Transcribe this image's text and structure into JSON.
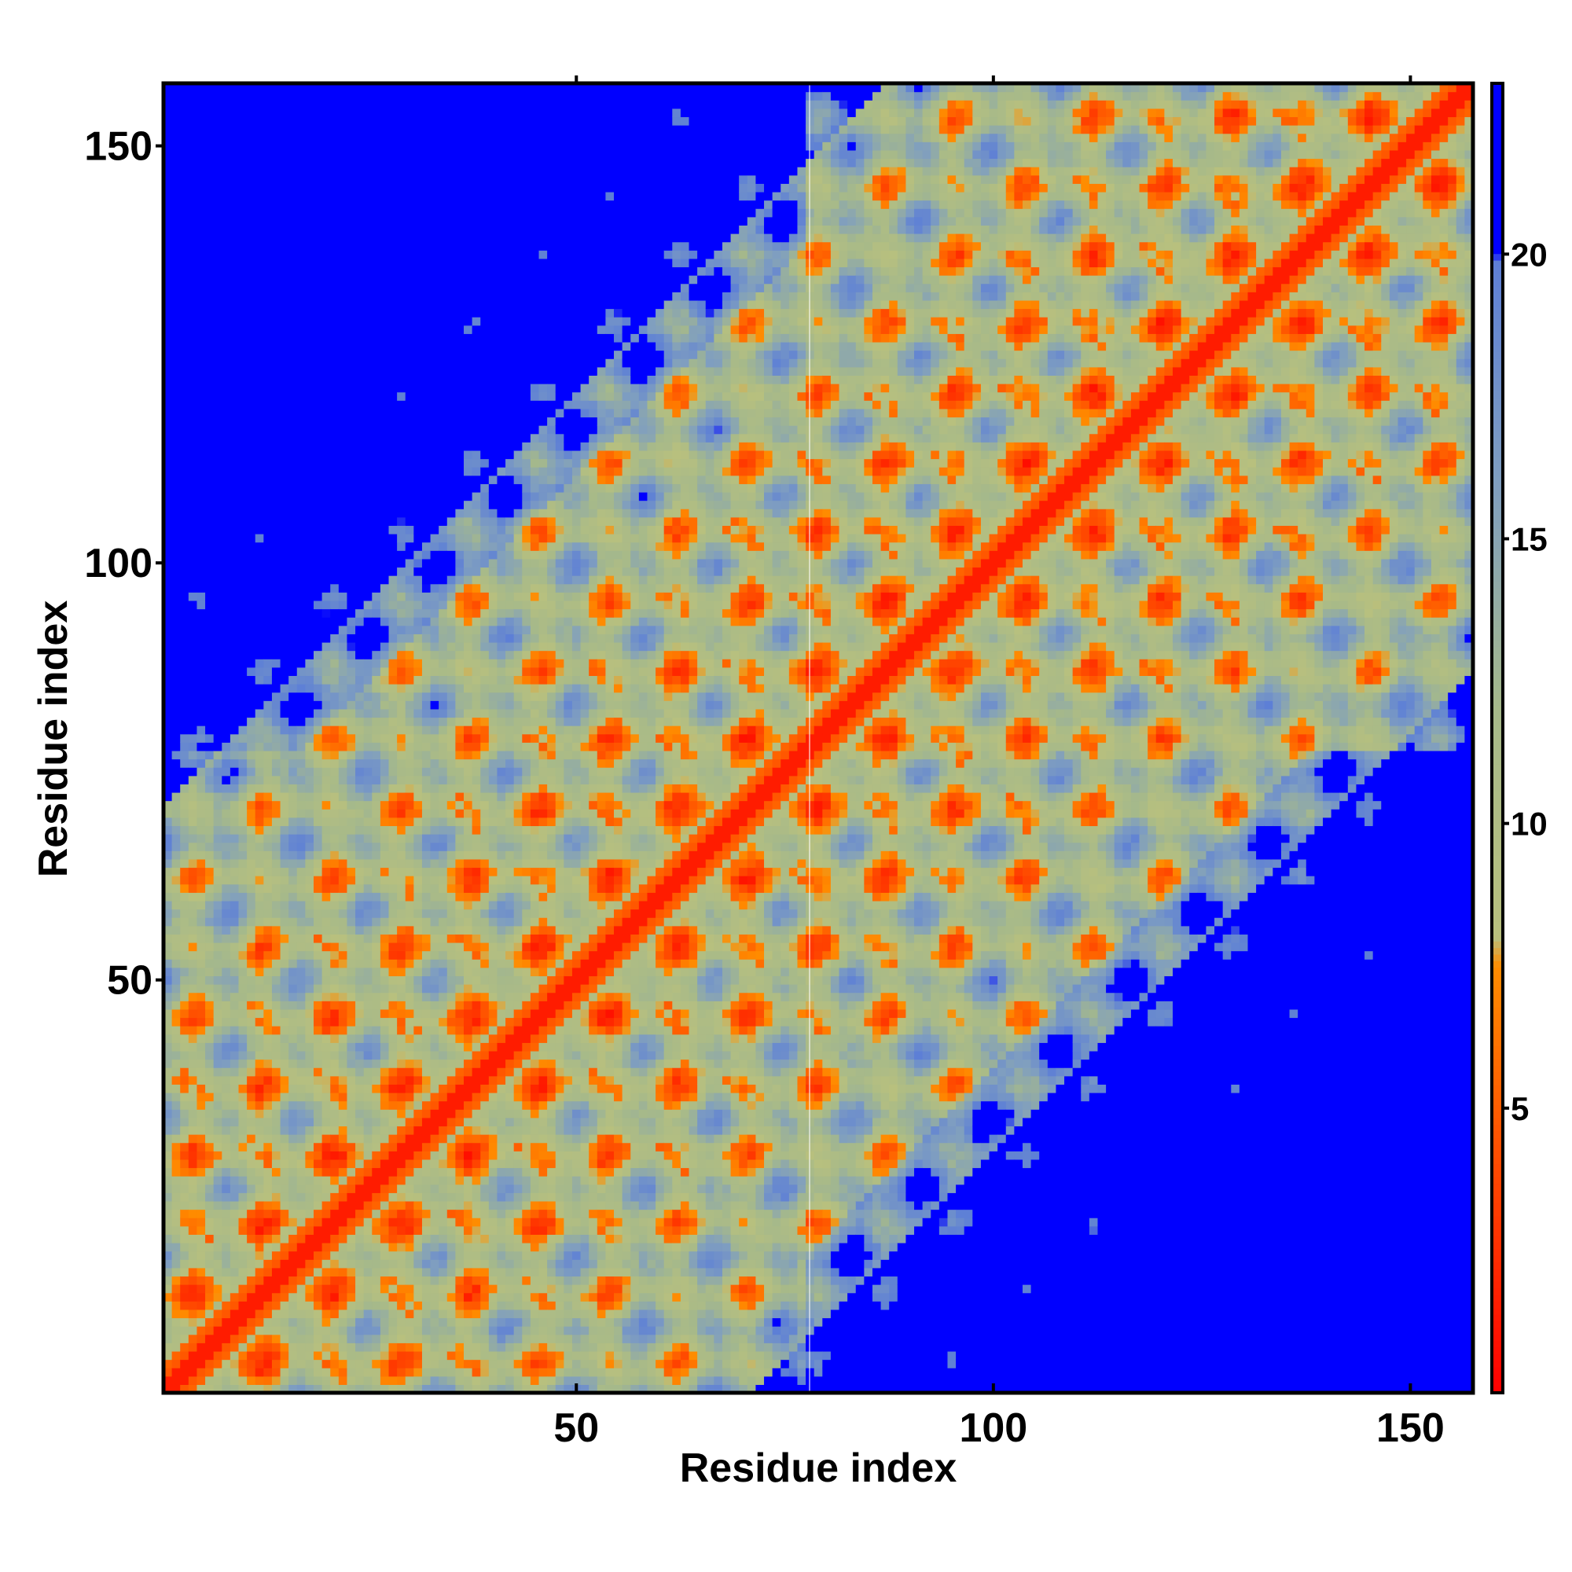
{
  "chart_data": {
    "type": "heatmap",
    "subtype": "residue distance map",
    "xlabel": "Residue index",
    "ylabel": "Residue index",
    "n_residues": 157,
    "xlim": [
      1,
      157
    ],
    "ylim": [
      1,
      157
    ],
    "x_ticks": [
      50,
      100,
      150
    ],
    "y_ticks": [
      50,
      100,
      150
    ],
    "x_tick_labels": [
      "50",
      "100",
      "150"
    ],
    "y_tick_labels": [
      "50",
      "100",
      "150"
    ],
    "colorbar": {
      "range": [
        0,
        23
      ],
      "ticks": [
        5,
        10,
        15,
        20
      ],
      "tick_labels": [
        "5",
        "10",
        "15",
        "20"
      ],
      "stops": [
        {
          "value": 0,
          "color": "#ff0000"
        },
        {
          "value": 4,
          "color": "#ff4a00"
        },
        {
          "value": 7.5,
          "color": "#ff8c00"
        },
        {
          "value": 8,
          "color": "#b8c07e"
        },
        {
          "value": 12,
          "color": "#a6b98a"
        },
        {
          "value": 16,
          "color": "#7f9ec0"
        },
        {
          "value": 19.9,
          "color": "#5d7fd6"
        },
        {
          "value": 20,
          "color": "#0000ff"
        },
        {
          "value": 23,
          "color": "#0000ff"
        }
      ]
    },
    "structure": "Helical repeat protein: diagonal contacts plus periodic off-diagonal contact clusters; residues 1-78 contact pattern extends to the upper-left, residues 78-157 to the upper-right; long-range N/C terminal regions largely far (blue).",
    "grid": false,
    "legend": "colorbar-right"
  }
}
